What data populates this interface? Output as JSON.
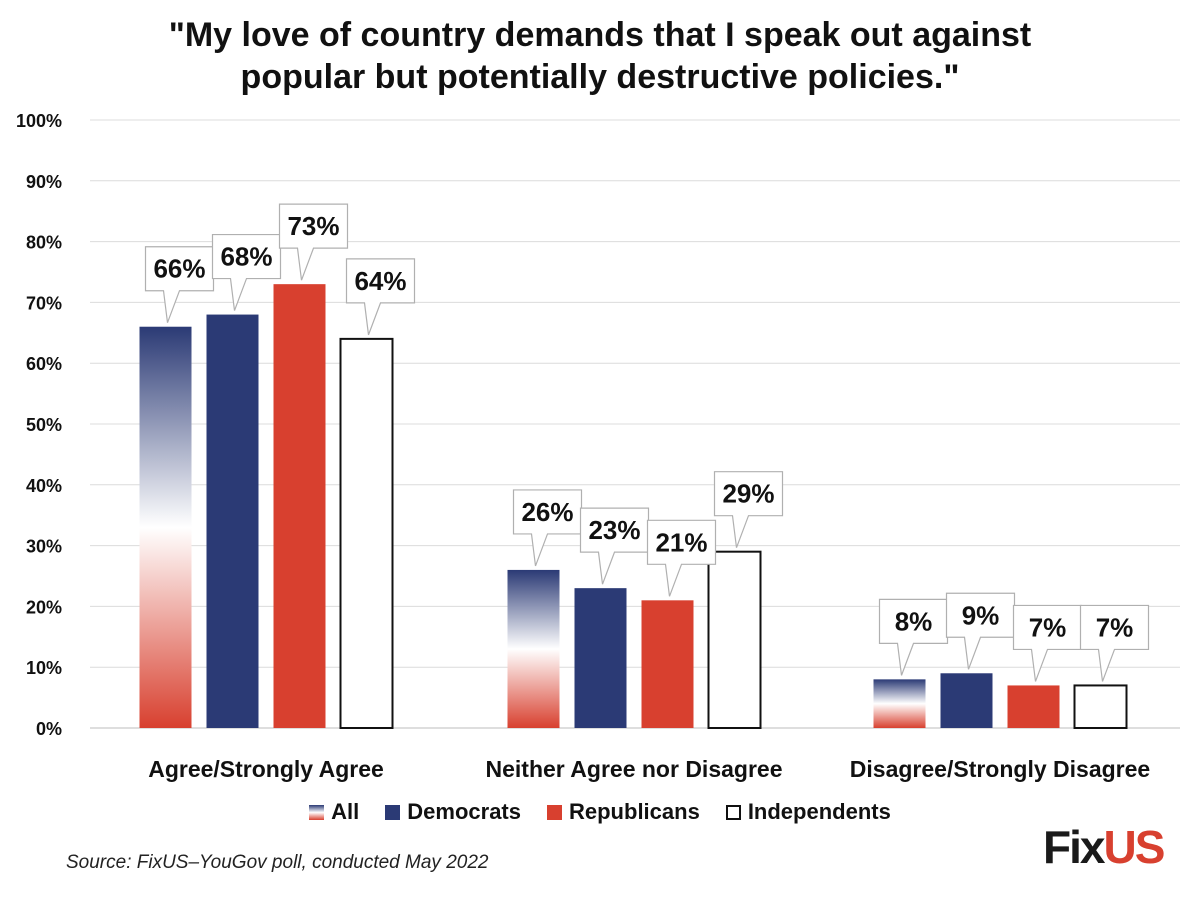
{
  "chart_data": {
    "type": "bar",
    "title_lines": [
      "\"My love of country demands that I speak out against",
      "popular but potentially destructive policies.\""
    ],
    "categories": [
      "Agree/Strongly Agree",
      "Neither Agree nor Disagree",
      "Disagree/Strongly Disagree"
    ],
    "series": [
      {
        "name": "All",
        "values": [
          66,
          26,
          8
        ],
        "labels": [
          "66%",
          "26%",
          "8%"
        ],
        "fill": "gradient"
      },
      {
        "name": "Democrats",
        "values": [
          68,
          23,
          9
        ],
        "labels": [
          "68%",
          "23%",
          "9%"
        ],
        "fill": "#2b3a75"
      },
      {
        "name": "Republicans",
        "values": [
          73,
          21,
          7
        ],
        "labels": [
          "73%",
          "21%",
          "7%"
        ],
        "fill": "#d8402f"
      },
      {
        "name": "Independents",
        "values": [
          64,
          29,
          7
        ],
        "labels": [
          "64%",
          "29%",
          "7%"
        ],
        "fill": "#ffffff"
      }
    ],
    "ylim": [
      0,
      100
    ],
    "yticks": [
      "0%",
      "10%",
      "20%",
      "30%",
      "40%",
      "50%",
      "60%",
      "70%",
      "80%",
      "90%",
      "100%"
    ],
    "grid": true,
    "legend_position": "bottom"
  },
  "colors": {
    "navy": "#2b3a75",
    "red": "#d8402f",
    "white": "#ffffff",
    "grid": "#dcdcdc"
  },
  "source": "Source: FixUS–YouGov poll, conducted May 2022",
  "logo": {
    "fix": "Fix",
    "us": "US"
  }
}
